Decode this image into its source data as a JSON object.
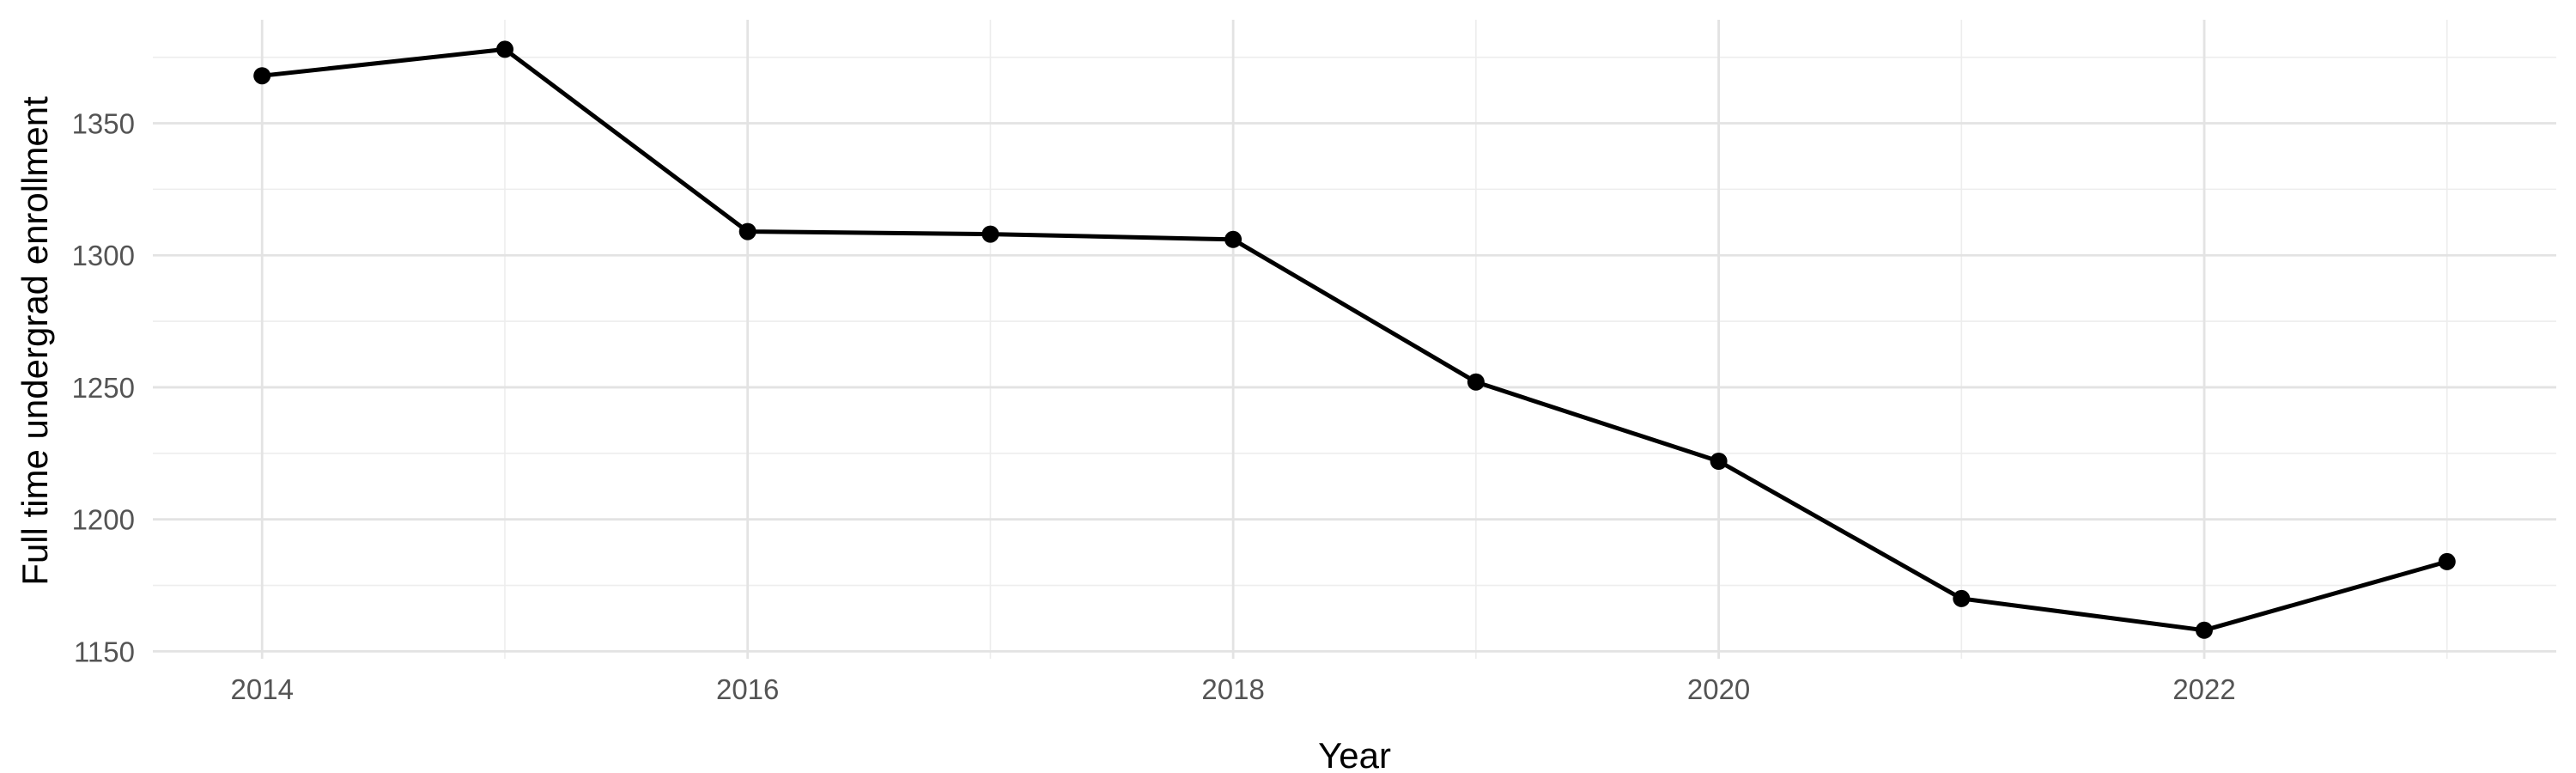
{
  "chart_data": {
    "type": "line",
    "title": "",
    "xlabel": "Year",
    "ylabel": "Full time undergrad enrollment",
    "x": [
      2014,
      2015,
      2016,
      2017,
      2018,
      2019,
      2020,
      2021,
      2022,
      2023
    ],
    "values": [
      1368,
      1378,
      1309,
      1308,
      1306,
      1252,
      1222,
      1170,
      1158,
      1184
    ],
    "series": [
      {
        "name": "Full time undergrad enrollment",
        "values": [
          1368,
          1378,
          1309,
          1308,
          1306,
          1252,
          1222,
          1170,
          1158,
          1184
        ]
      }
    ],
    "x_major_ticks": {
      "values": [
        2014,
        2016,
        2018,
        2020,
        2022
      ],
      "labels": [
        "2014",
        "2016",
        "2018",
        "2020",
        "2022"
      ]
    },
    "x_minor_ticks": [
      2015,
      2017,
      2019,
      2021,
      2023
    ],
    "y_major_ticks": {
      "values": [
        1150,
        1200,
        1250,
        1300,
        1350
      ],
      "labels": [
        "1150",
        "1200",
        "1250",
        "1300",
        "1350"
      ]
    },
    "y_minor_ticks": [
      1175,
      1225,
      1275,
      1325,
      1375
    ],
    "xlim": [
      2013.55,
      2023.45
    ],
    "ylim": [
      1147.2,
      1389.2
    ],
    "grid": true,
    "legend": false,
    "marker": "circle",
    "line_width": 5,
    "point_radius": 10,
    "colors": {
      "line": "#000000",
      "point": "#000000",
      "grid_major": "#e3e3e3",
      "grid_minor": "#ededed",
      "axis_text": "#545454",
      "axis_title": "#000000",
      "background": "#ffffff"
    }
  }
}
